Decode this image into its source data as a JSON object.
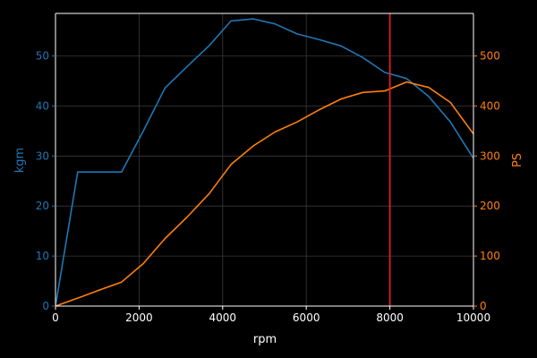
{
  "chart_data": {
    "type": "line",
    "xlabel": "rpm",
    "ylabel_left": "kgm",
    "ylabel_right": "PS",
    "xlim": [
      0,
      10000
    ],
    "ylim_left": [
      0,
      58.5
    ],
    "ylim_right": [
      0,
      585
    ],
    "grid": true,
    "x_ticks": [
      0,
      2000,
      4000,
      6000,
      8000,
      10000
    ],
    "y_ticks_left": [
      0,
      10,
      20,
      30,
      40,
      50
    ],
    "y_ticks_right": [
      0,
      100,
      200,
      300,
      400,
      500
    ],
    "vline": {
      "x": 8000,
      "color": "#e02020"
    },
    "series": [
      {
        "axis": "left",
        "color": "#1f77b4",
        "x": [
          0,
          530,
          1580,
          2100,
          2620,
          3150,
          3680,
          4200,
          4730,
          5250,
          5780,
          6300,
          6830,
          7350,
          7880,
          8400,
          8930,
          9450,
          10000
        ],
        "values": [
          0,
          26.8,
          26.8,
          35,
          43.6,
          47.9,
          52.1,
          57,
          57.4,
          56.4,
          54.4,
          53.3,
          52,
          49.7,
          46.7,
          45.5,
          41.9,
          36.8,
          29.5
        ]
      },
      {
        "axis": "right",
        "color": "#ff7f0e",
        "x": [
          0,
          530,
          1050,
          1580,
          2100,
          2620,
          3150,
          3680,
          4200,
          4730,
          5250,
          5780,
          6300,
          6830,
          7350,
          7880,
          8400,
          8930,
          9450,
          10000
        ],
        "values": [
          0,
          16,
          32,
          48,
          85,
          135,
          178,
          225,
          283,
          320,
          348,
          368,
          392,
          414,
          427,
          430,
          448,
          437,
          407,
          344
        ]
      }
    ]
  }
}
